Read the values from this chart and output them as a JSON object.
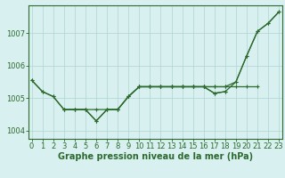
{
  "x": [
    0,
    1,
    2,
    3,
    4,
    5,
    6,
    7,
    8,
    9,
    10,
    11,
    12,
    13,
    14,
    15,
    16,
    17,
    18,
    19,
    20,
    21,
    22,
    23
  ],
  "lineA": [
    1005.55,
    1005.2,
    1005.05,
    1004.65,
    1004.65,
    1004.65,
    1004.65,
    1004.65,
    1004.65,
    1005.05,
    1005.35,
    1005.35,
    1005.35,
    1005.35,
    1005.35,
    1005.35,
    1005.35,
    1005.35,
    1005.35,
    1005.35,
    1005.35,
    1005.35,
    null,
    null
  ],
  "lineB": [
    null,
    null,
    null,
    1004.65,
    1004.65,
    1004.65,
    1004.3,
    1004.65,
    1004.65,
    1005.05,
    1005.35,
    1005.35,
    1005.35,
    1005.35,
    1005.35,
    1005.35,
    1005.35,
    1005.15,
    1005.2,
    null,
    null,
    null,
    null,
    null
  ],
  "lineC": [
    null,
    null,
    null,
    null,
    null,
    null,
    null,
    null,
    null,
    null,
    1005.35,
    1005.35,
    1005.35,
    1005.35,
    1005.35,
    1005.35,
    1005.35,
    1005.15,
    1005.2,
    1005.5,
    1006.3,
    1007.05,
    1007.3,
    1007.65
  ],
  "lineD": [
    1005.55,
    1005.2,
    1005.05,
    1004.65,
    1004.65,
    1004.65,
    1004.3,
    1004.65,
    1004.65,
    1005.05,
    1005.35,
    1005.35,
    1005.35,
    1005.35,
    1005.35,
    1005.35,
    1005.35,
    1005.35,
    1005.35,
    1005.5,
    1006.3,
    1007.05,
    1007.3,
    1007.65
  ],
  "line_color": "#2d6a2d",
  "bg_color": "#d8f0f0",
  "grid_color": "#b0d4d4",
  "xlabel": "Graphe pression niveau de la mer (hPa)",
  "yticks": [
    1004,
    1005,
    1006,
    1007
  ],
  "ylim": [
    1003.75,
    1007.85
  ],
  "xlim": [
    -0.3,
    23.3
  ],
  "label_fontsize": 7.0,
  "tick_fontsize": 6.0
}
